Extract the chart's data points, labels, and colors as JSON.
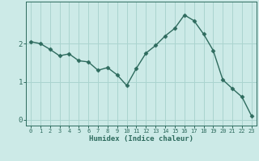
{
  "x": [
    0,
    1,
    2,
    3,
    4,
    5,
    6,
    7,
    8,
    9,
    10,
    11,
    12,
    13,
    14,
    15,
    16,
    17,
    18,
    19,
    20,
    21,
    22,
    23
  ],
  "y": [
    2.05,
    2.0,
    1.85,
    1.68,
    1.73,
    1.55,
    1.52,
    1.3,
    1.37,
    1.18,
    0.9,
    1.35,
    1.75,
    1.95,
    2.2,
    2.4,
    2.75,
    2.6,
    2.25,
    1.82,
    1.05,
    0.82,
    0.6,
    0.1
  ],
  "xlabel": "Humidex (Indice chaleur)",
  "bg_color": "#cceae7",
  "line_color": "#2e6b5e",
  "grid_color": "#aad4cf",
  "tick_color": "#2e6b5e",
  "yticks": [
    0,
    1,
    2
  ],
  "ylim": [
    -0.15,
    3.1
  ],
  "xlim": [
    -0.5,
    23.5
  ],
  "figsize": [
    3.2,
    2.0
  ],
  "dpi": 100
}
